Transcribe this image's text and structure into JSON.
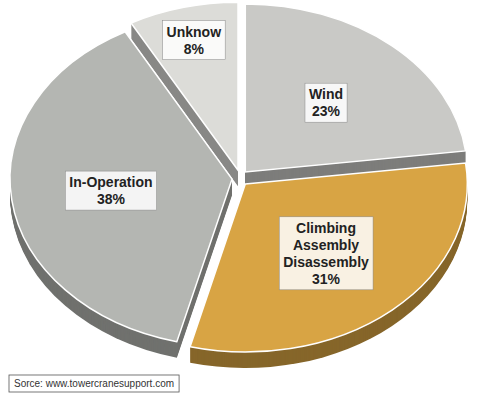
{
  "chart_data": {
    "type": "pie",
    "categories": [
      "Wind",
      "Climbing Assembly Disassembly",
      "In-Operation",
      "Unknow"
    ],
    "values": [
      23,
      31,
      38,
      8
    ],
    "value_labels": [
      "23%",
      "31%",
      "38%",
      "8%"
    ],
    "colors": [
      "#c9c9c6",
      "#d8a444",
      "#b4b6b2",
      "#dcdcd8"
    ],
    "data_labels": true,
    "source": "Sorce: www.towercranesupport.com"
  }
}
